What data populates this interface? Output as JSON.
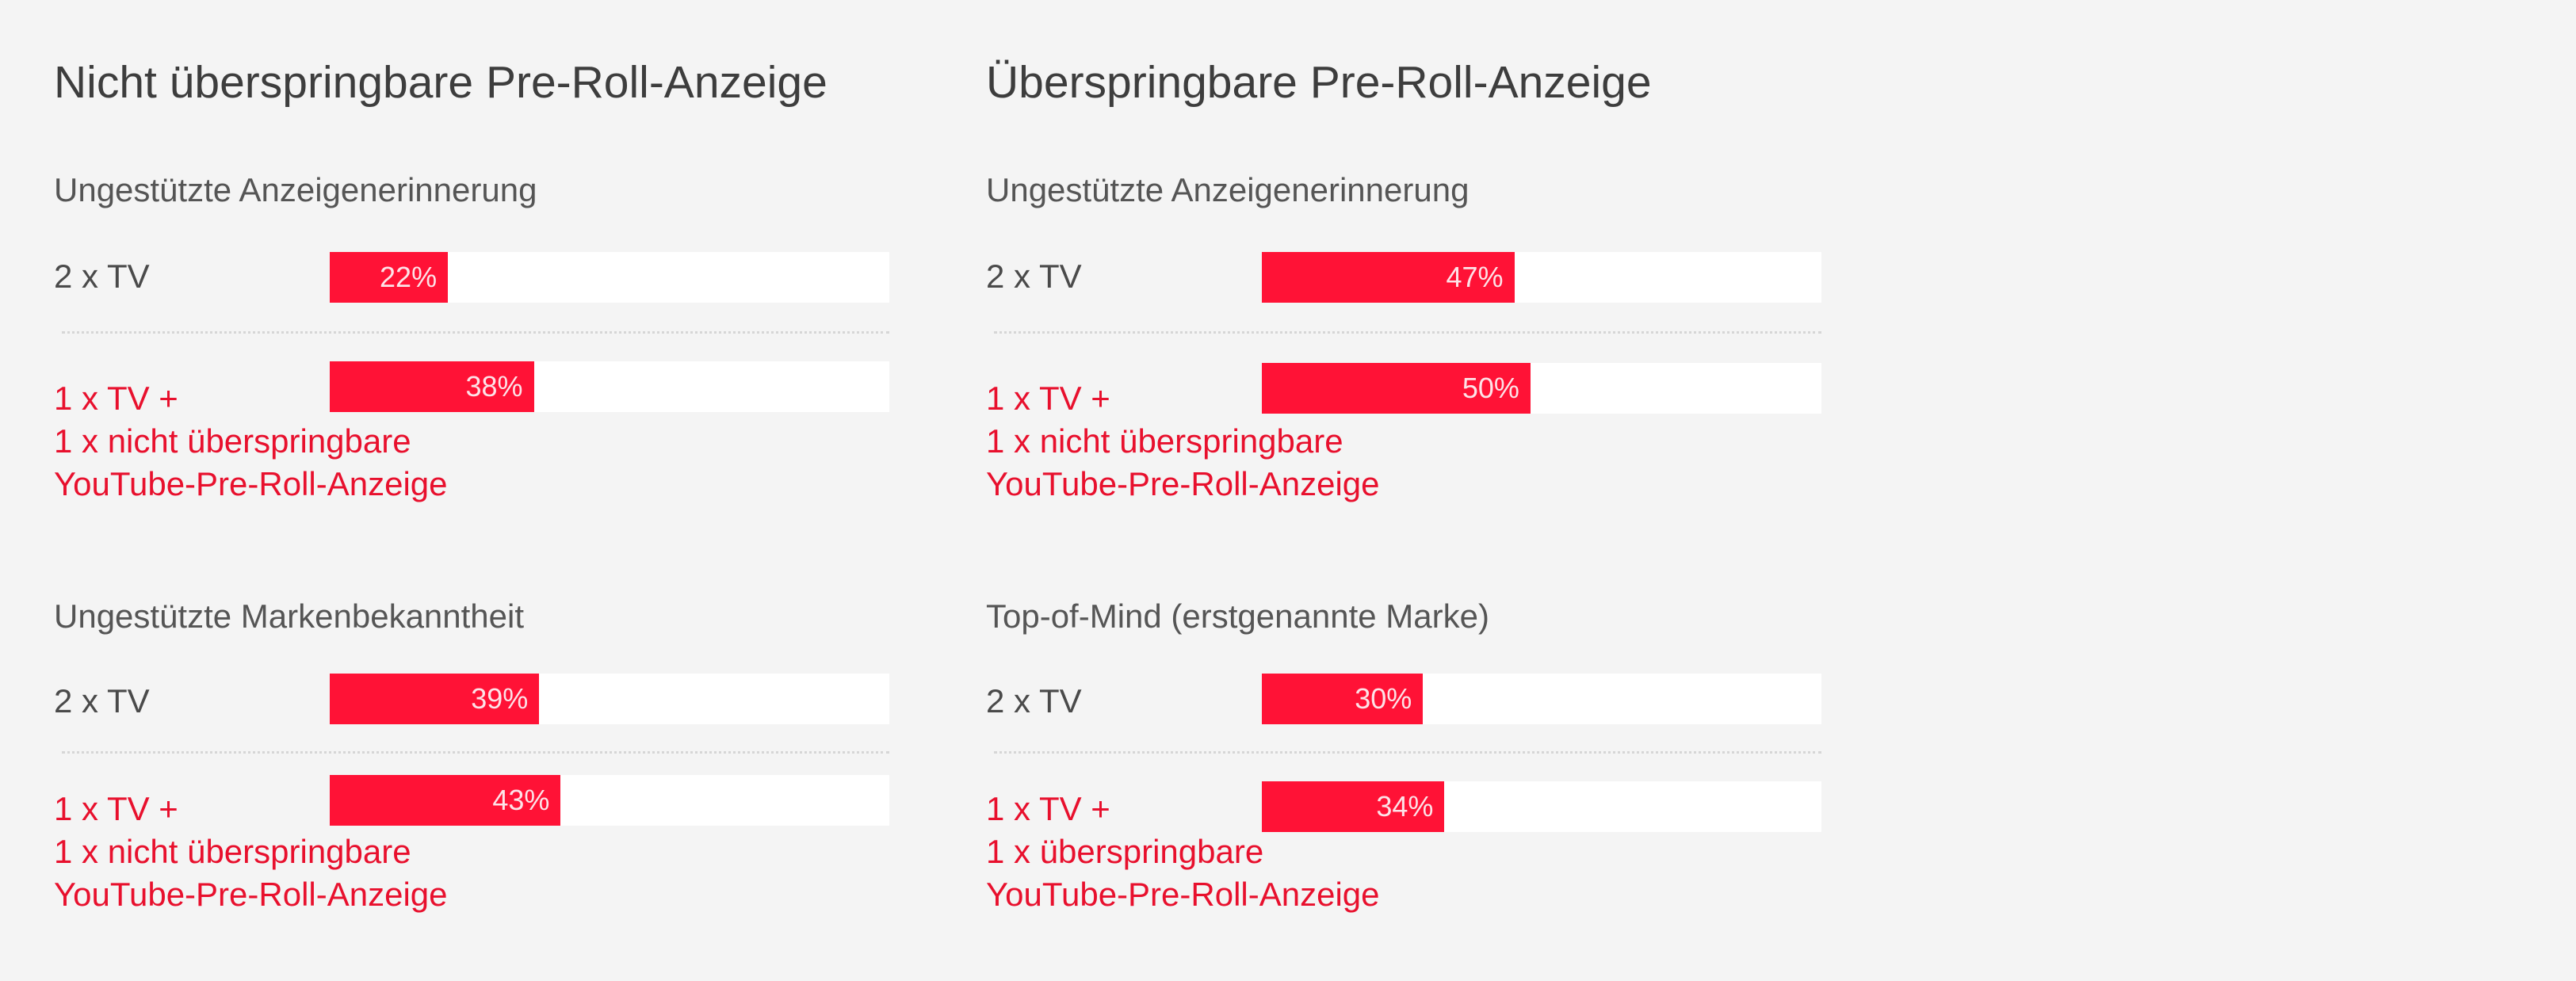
{
  "colors": {
    "background": "#f4f4f4",
    "bar": "#ff1236",
    "track": "#ffffff",
    "highlight_text": "#e8102d",
    "text": "#444444"
  },
  "panels": [
    {
      "title": "Nicht überspringbare Pre-Roll-Anzeige",
      "sections": [
        {
          "title": "Ungestützte Anzeigenerinnerung",
          "rows": [
            {
              "label": [
                "2 x TV"
              ],
              "value": 22,
              "value_label": "22%"
            },
            {
              "label": [
                "1 x TV +",
                "1 x nicht überspringbare",
                "YouTube-Pre-Roll-Anzeige"
              ],
              "value": 38,
              "value_label": "38%"
            }
          ]
        },
        {
          "title": "Ungestützte Markenbekanntheit",
          "rows": [
            {
              "label": [
                "2 x TV"
              ],
              "value": 39,
              "value_label": "39%"
            },
            {
              "label": [
                "1 x TV +",
                "1 x nicht überspringbare",
                "YouTube-Pre-Roll-Anzeige"
              ],
              "value": 43,
              "value_label": "43%"
            }
          ]
        }
      ]
    },
    {
      "title": "Überspringbare Pre-Roll-Anzeige",
      "sections": [
        {
          "title": "Ungestützte Anzeigenerinnerung",
          "rows": [
            {
              "label": [
                "2 x TV"
              ],
              "value": 47,
              "value_label": "47%"
            },
            {
              "label": [
                "1 x TV +",
                "1 x nicht überspringbare",
                "YouTube-Pre-Roll-Anzeige"
              ],
              "value": 50,
              "value_label": "50%"
            }
          ]
        },
        {
          "title": "Top-of-Mind (erstgenannte Marke)",
          "rows": [
            {
              "label": [
                "2 x TV"
              ],
              "value": 30,
              "value_label": "30%"
            },
            {
              "label": [
                "1 x TV +",
                "1 x überspringbare",
                "YouTube-Pre-Roll-Anzeige"
              ],
              "value": 34,
              "value_label": "34%"
            }
          ]
        }
      ]
    }
  ],
  "chart_data": [
    {
      "type": "bar",
      "title": "Nicht überspringbare Pre-Roll-Anzeige",
      "subcharts": [
        {
          "title": "Ungestützte Anzeigenerinnerung",
          "categories": [
            "2 x TV",
            "1 x TV + 1 x nicht überspringbare YouTube-Pre-Roll-Anzeige"
          ],
          "values": [
            22,
            38
          ],
          "unit": "%"
        },
        {
          "title": "Ungestützte Markenbekanntheit",
          "categories": [
            "2 x TV",
            "1 x TV + 1 x nicht überspringbare YouTube-Pre-Roll-Anzeige"
          ],
          "values": [
            39,
            43
          ],
          "unit": "%"
        }
      ],
      "ylim": [
        0,
        100
      ]
    },
    {
      "type": "bar",
      "title": "Überspringbare Pre-Roll-Anzeige",
      "subcharts": [
        {
          "title": "Ungestützte Anzeigenerinnerung",
          "categories": [
            "2 x TV",
            "1 x TV + 1 x nicht überspringbare YouTube-Pre-Roll-Anzeige"
          ],
          "values": [
            47,
            50
          ],
          "unit": "%"
        },
        {
          "title": "Top-of-Mind (erstgenannte Marke)",
          "categories": [
            "2 x TV",
            "1 x TV + 1 x überspringbare YouTube-Pre-Roll-Anzeige"
          ],
          "values": [
            30,
            34
          ],
          "unit": "%"
        }
      ],
      "ylim": [
        0,
        100
      ]
    }
  ]
}
